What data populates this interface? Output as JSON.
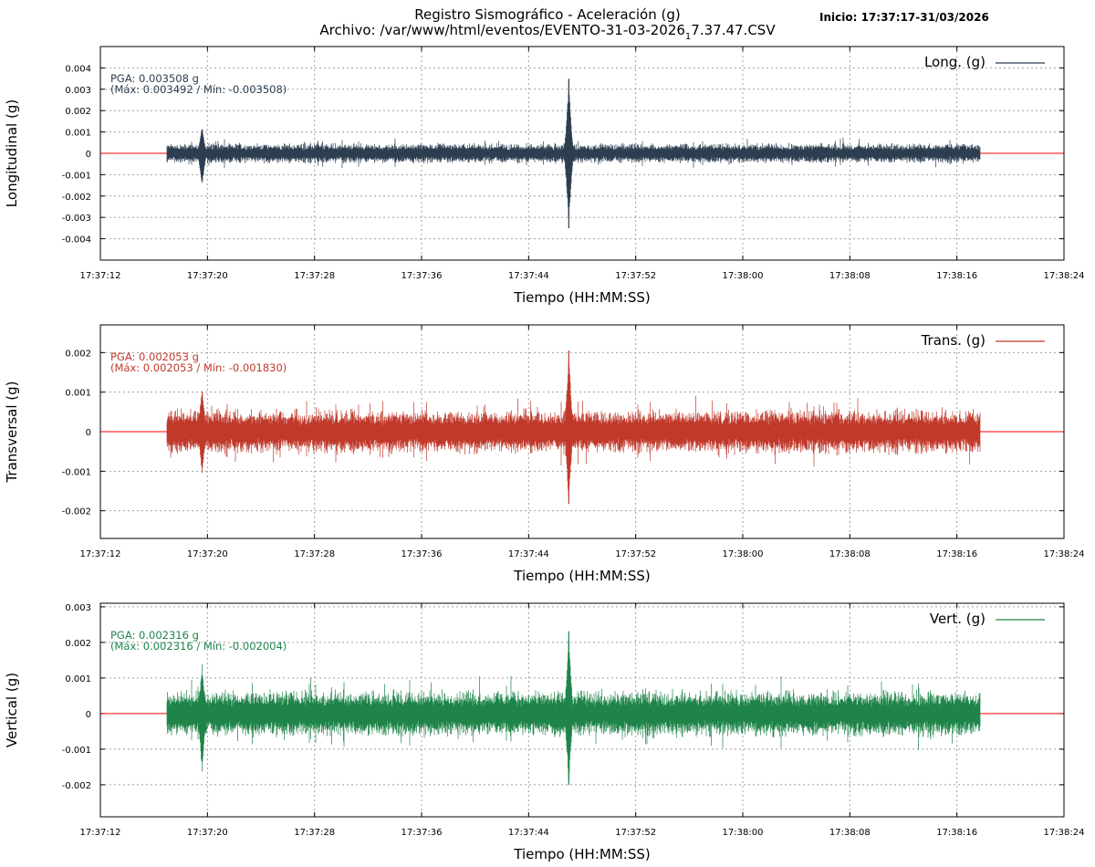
{
  "header": {
    "title_line1": "Registro Sismográfico - Aceleración (g)",
    "title_line2_prefix": "Archivo: /var/www/html/eventos/EVENTO-31-03-2026",
    "title_line2_subscript": "1",
    "title_line2_suffix": "7.37.47.CSV",
    "start_info": "Inicio: 17:37:17-31/03/2026"
  },
  "colors": {
    "longitudinal": "#2c3e50",
    "transversal": "#c0392b",
    "vertical": "#1e8449",
    "baseline": "#ff0000",
    "grid": "#a0a0a0"
  },
  "chart_data": [
    {
      "type": "line",
      "title": "",
      "ylabel": "Longitudinal (g)",
      "xlabel": "Tiempo (HH:MM:SS)",
      "legend": "Long. (g)",
      "legend_position": "top-right",
      "grid": true,
      "xlim": [
        "17:37:12",
        "17:38:24"
      ],
      "x_ticks": [
        "17:37:12",
        "17:37:20",
        "17:37:28",
        "17:37:36",
        "17:37:44",
        "17:37:52",
        "17:38:00",
        "17:38:08",
        "17:38:16",
        "17:38:24"
      ],
      "ylim": [
        -0.005,
        0.005
      ],
      "y_ticks": [
        0.004,
        0.003,
        0.002,
        0.001,
        0,
        -0.001,
        -0.002,
        -0.003,
        -0.004
      ],
      "y_tick_labels": [
        "0.004",
        "0.003",
        "0.002",
        "0.001",
        "0",
        "-0.001",
        "-0.002",
        "-0.003",
        "-0.004"
      ],
      "annotation_line1": "PGA: 0.003508 g",
      "annotation_line2": "(Máx: 0.003492 / Mín: -0.003508)",
      "signal": {
        "start": "17:37:17",
        "end": "17:38:17.7",
        "typical_amplitude": 0.0005,
        "events": [
          {
            "time": "17:37:19.6",
            "max": 0.0013,
            "min": -0.0016
          },
          {
            "time": "17:37:47.0",
            "max": 0.003492,
            "min": -0.003508
          }
        ]
      }
    },
    {
      "type": "line",
      "title": "",
      "ylabel": "Transversal (g)",
      "xlabel": "Tiempo (HH:MM:SS)",
      "legend": "Trans. (g)",
      "legend_position": "top-right",
      "grid": true,
      "xlim": [
        "17:37:12",
        "17:38:24"
      ],
      "x_ticks": [
        "17:37:12",
        "17:37:20",
        "17:37:28",
        "17:37:36",
        "17:37:44",
        "17:37:52",
        "17:38:00",
        "17:38:08",
        "17:38:16",
        "17:38:24"
      ],
      "ylim": [
        -0.0027,
        0.0027
      ],
      "y_ticks": [
        0.002,
        0.001,
        0,
        -0.001,
        -0.002
      ],
      "y_tick_labels": [
        "0.002",
        "0.001",
        "0",
        "-0.001",
        "-0.002"
      ],
      "annotation_line1": "PGA: 0.002053 g",
      "annotation_line2": "(Máx: 0.002053 / Mín: -0.001830)",
      "signal": {
        "start": "17:37:17",
        "end": "17:38:17.7",
        "typical_amplitude": 0.0006,
        "events": [
          {
            "time": "17:37:19.6",
            "max": 0.0012,
            "min": -0.0011
          },
          {
            "time": "17:37:47.0",
            "max": 0.002053,
            "min": -0.00183
          }
        ]
      }
    },
    {
      "type": "line",
      "title": "",
      "ylabel": "Vertical (g)",
      "xlabel": "Tiempo (HH:MM:SS)",
      "legend": "Vert. (g)",
      "legend_position": "top-right",
      "grid": true,
      "xlim": [
        "17:37:12",
        "17:38:24"
      ],
      "x_ticks": [
        "17:37:12",
        "17:37:20",
        "17:37:28",
        "17:37:36",
        "17:37:44",
        "17:37:52",
        "17:38:00",
        "17:38:08",
        "17:38:16",
        "17:38:24"
      ],
      "ylim": [
        -0.0029,
        0.0031
      ],
      "y_ticks": [
        0.003,
        0.002,
        0.001,
        0,
        -0.001,
        -0.002
      ],
      "y_tick_labels": [
        "0.003",
        "0.002",
        "0.001",
        "0",
        "-0.001",
        "-0.002"
      ],
      "annotation_line1": "PGA: 0.002316 g",
      "annotation_line2": "(Máx: 0.002316 / Mín: -0.002004)",
      "signal": {
        "start": "17:37:17",
        "end": "17:38:17.7",
        "typical_amplitude": 0.0007,
        "events": [
          {
            "time": "17:37:19.6",
            "max": 0.0014,
            "min": -0.0017
          },
          {
            "time": "17:37:47.0",
            "max": 0.002316,
            "min": -0.002004
          }
        ]
      }
    }
  ]
}
